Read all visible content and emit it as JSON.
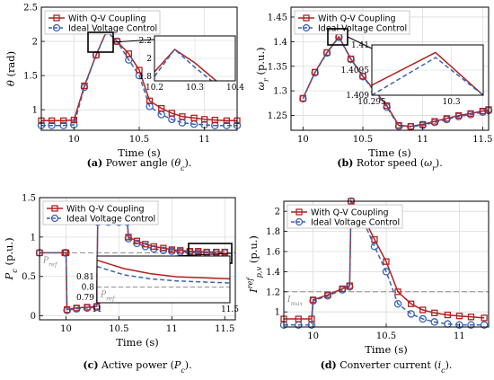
{
  "colors": {
    "coupling": "#b22222",
    "ideal": "#3a64b4",
    "reference": "#8c8c8c"
  },
  "legend": {
    "coupling": "With Q-V Coupling",
    "ideal": "Ideal Voltage Control"
  },
  "charts": [
    {
      "id": "a",
      "chart_data": {
        "type": "line",
        "ylabel": "θ (rad)",
        "xlabel": "Time (s)",
        "xlim": [
          9.75,
          11.25
        ],
        "ylim": [
          0.7,
          2.5
        ],
        "xticks": [
          "10",
          "10.5",
          "11"
        ],
        "yticks": [
          "1",
          "1.5",
          "2",
          "2.5"
        ],
        "grid": true,
        "series": [
          {
            "name": "With Q-V Coupling",
            "x": [
              9.75,
              9.83,
              9.92,
              10,
              10.08,
              10.17,
              10.25,
              10.33,
              10.42,
              10.5,
              10.58,
              10.67,
              10.75,
              10.83,
              10.92,
              11,
              11.08,
              11.17,
              11.25
            ],
            "y": [
              0.84,
              0.84,
              0.84,
              0.85,
              1.35,
              1.8,
              2.15,
              2.0,
              1.82,
              1.58,
              1.13,
              1.02,
              0.95,
              0.9,
              0.88,
              0.86,
              0.85,
              0.84,
              0.84
            ]
          },
          {
            "name": "Ideal Voltage Control",
            "x": [
              9.75,
              9.83,
              9.92,
              10,
              10.08,
              10.17,
              10.25,
              10.33,
              10.42,
              10.5,
              10.58,
              10.67,
              10.75,
              10.83,
              10.92,
              11,
              11.08,
              11.17,
              11.25
            ],
            "y": [
              0.77,
              0.77,
              0.77,
              0.78,
              1.33,
              1.8,
              2.15,
              2.0,
              1.73,
              1.5,
              1.05,
              0.93,
              0.86,
              0.81,
              0.79,
              0.78,
              0.77,
              0.77,
              0.77
            ]
          }
        ]
      },
      "inset": {
        "xlim": [
          10.2,
          10.4
        ],
        "ylim": [
          1.75,
          2.25
        ],
        "xticks": [
          "10.2",
          "10.3",
          "10.4"
        ],
        "yticks": [
          "1.8",
          "2",
          "2.2"
        ],
        "coupling": {
          "x": [
            10.2,
            10.25,
            10.3,
            10.35,
            10.4
          ],
          "y": [
            1.85,
            2.1,
            1.95,
            1.76,
            1.6
          ]
        },
        "ideal": {
          "x": [
            10.2,
            10.25,
            10.3,
            10.35,
            10.4
          ],
          "y": [
            1.8,
            2.1,
            1.9,
            1.72,
            1.55
          ]
        }
      },
      "caption": "(a) Power angle (θc)."
    },
    {
      "id": "b",
      "chart_data": {
        "type": "line",
        "ylabel": "ωr (p.u.)",
        "xlabel": "Time (s)",
        "xlim": [
          9.9,
          11.55
        ],
        "ylim": [
          1.22,
          1.47
        ],
        "xticks": [
          "10",
          "10.5",
          "11",
          "11.5"
        ],
        "yticks": [
          "1.25",
          "1.3",
          "1.35",
          "1.4",
          "1.45"
        ],
        "grid": true,
        "series": [
          {
            "name": "With Q-V Coupling",
            "x": [
              10,
              10.1,
              10.2,
              10.3,
              10.4,
              10.5,
              10.6,
              10.7,
              10.8,
              10.9,
              11,
              11.1,
              11.2,
              11.3,
              11.4,
              11.5,
              11.55
            ],
            "y": [
              1.285,
              1.338,
              1.378,
              1.41,
              1.365,
              1.33,
              1.3,
              1.27,
              1.23,
              1.228,
              1.232,
              1.238,
              1.244,
              1.25,
              1.254,
              1.259,
              1.262
            ]
          },
          {
            "name": "Ideal Voltage Control",
            "x": [
              10,
              10.1,
              10.2,
              10.3,
              10.4,
              10.5,
              10.6,
              10.7,
              10.8,
              10.9,
              11,
              11.1,
              11.2,
              11.3,
              11.4,
              11.5,
              11.55
            ],
            "y": [
              1.284,
              1.337,
              1.377,
              1.409,
              1.364,
              1.329,
              1.298,
              1.267,
              1.228,
              1.227,
              1.23,
              1.236,
              1.242,
              1.248,
              1.252,
              1.257,
              1.26
            ]
          }
        ]
      },
      "inset": {
        "xlim": [
          10.295,
          10.302
        ],
        "ylim": [
          1.409,
          1.41
        ],
        "xticks": [
          "10.295",
          "10.3"
        ],
        "yticks": [
          "1.409",
          "1.4095",
          "1.41"
        ],
        "coupling": {
          "x": [
            10.295,
            10.299,
            10.302
          ],
          "y": [
            1.4092,
            1.40985,
            1.409
          ]
        },
        "ideal": {
          "x": [
            10.295,
            10.299,
            10.302
          ],
          "y": [
            1.409,
            1.40975,
            1.409
          ]
        }
      },
      "caption": "(b) Rotor speed (ωr)."
    },
    {
      "id": "c",
      "chart_data": {
        "type": "line",
        "ylabel": "Pc (p.u.)",
        "xlabel": "Time (s)",
        "xlim": [
          9.75,
          11.6
        ],
        "ylim": [
          -0.05,
          1.5
        ],
        "xticks": [
          "10",
          "10.5",
          "11",
          "11.5"
        ],
        "yticks": [
          "0",
          "0.5",
          "1",
          "1.5"
        ],
        "grid": true,
        "reference": {
          "label": "Pref",
          "y": 0.8
        },
        "series": [
          {
            "name": "With Q-V Coupling",
            "x": [
              9.75,
              9.99,
              10.0,
              10.01,
              10.1,
              10.2,
              10.29,
              10.3,
              10.4,
              10.5,
              10.58,
              10.59,
              10.67,
              10.75,
              10.83,
              10.92,
              11,
              11.08,
              11.17,
              11.25,
              11.33,
              11.42,
              11.5
            ],
            "y": [
              0.8,
              0.8,
              0.8,
              0.08,
              0.1,
              0.11,
              0.12,
              1.2,
              1.2,
              1.2,
              1.2,
              1.0,
              0.95,
              0.91,
              0.88,
              0.86,
              0.84,
              0.83,
              0.82,
              0.82,
              0.81,
              0.81,
              0.81
            ]
          },
          {
            "name": "Ideal Voltage Control",
            "x": [
              9.75,
              9.99,
              10.0,
              10.01,
              10.1,
              10.2,
              10.29,
              10.3,
              10.4,
              10.5,
              10.58,
              10.59,
              10.67,
              10.75,
              10.83,
              10.92,
              11,
              11.08,
              11.17,
              11.25,
              11.33,
              11.42,
              11.5
            ],
            "y": [
              0.8,
              0.8,
              0.8,
              0.07,
              0.09,
              0.1,
              0.11,
              1.19,
              1.19,
              1.19,
              1.19,
              0.98,
              0.92,
              0.88,
              0.85,
              0.83,
              0.82,
              0.81,
              0.81,
              0.8,
              0.8,
              0.8,
              0.8
            ]
          }
        ]
      },
      "inset": {
        "xlim": [
          11.0,
          11.5
        ],
        "ylim": [
          0.785,
          0.83
        ],
        "xticks": [
          "11",
          "11.5"
        ],
        "yticks": [
          "0.79",
          "0.8",
          "0.81"
        ],
        "ref_label": "Pref",
        "ref_y": 0.8,
        "coupling": {
          "x": [
            11.0,
            11.1,
            11.2,
            11.3,
            11.4,
            11.5
          ],
          "y": [
            0.826,
            0.818,
            0.813,
            0.81,
            0.809,
            0.808
          ]
        },
        "ideal": {
          "x": [
            11.0,
            11.1,
            11.2,
            11.3,
            11.4,
            11.5
          ],
          "y": [
            0.82,
            0.812,
            0.808,
            0.806,
            0.805,
            0.804
          ]
        }
      },
      "caption": "(c) Active power (Pc)."
    },
    {
      "id": "d",
      "chart_data": {
        "type": "line",
        "ylabel": "Ip,vref (p.u.)",
        "xlabel": "Time (s)",
        "xlim": [
          9.8,
          11.2
        ],
        "ylim": [
          0.85,
          2.1
        ],
        "xticks": [
          "10",
          "10.5",
          "11"
        ],
        "yticks": [
          "1",
          "1.2",
          "1.4",
          "1.6",
          "1.8",
          "2"
        ],
        "grid": true,
        "reference": {
          "label": "Imax",
          "y": 1.2
        },
        "series": [
          {
            "name": "With Q-V Coupling",
            "x": [
              9.8,
              9.9,
              9.99,
              10.0,
              10.1,
              10.2,
              10.25,
              10.26,
              10.33,
              10.42,
              10.5,
              10.58,
              10.67,
              10.75,
              10.83,
              10.92,
              11.0,
              11.08,
              11.17
            ],
            "y": [
              0.93,
              0.93,
              0.93,
              1.12,
              1.17,
              1.23,
              1.26,
              2.1,
              1.98,
              1.72,
              1.5,
              1.2,
              1.08,
              1.02,
              0.99,
              0.97,
              0.96,
              0.95,
              0.94
            ]
          },
          {
            "name": "Ideal Voltage Control",
            "x": [
              9.8,
              9.9,
              9.99,
              10.0,
              10.1,
              10.2,
              10.25,
              10.26,
              10.33,
              10.42,
              10.5,
              10.58,
              10.67,
              10.75,
              10.83,
              10.92,
              11.0,
              11.08,
              11.17
            ],
            "y": [
              0.87,
              0.87,
              0.87,
              1.11,
              1.16,
              1.22,
              1.25,
              2.1,
              1.95,
              1.65,
              1.4,
              1.08,
              0.98,
              0.93,
              0.9,
              0.88,
              0.87,
              0.87,
              0.87
            ]
          }
        ]
      },
      "caption": "(d) Converter current (ic)."
    }
  ]
}
